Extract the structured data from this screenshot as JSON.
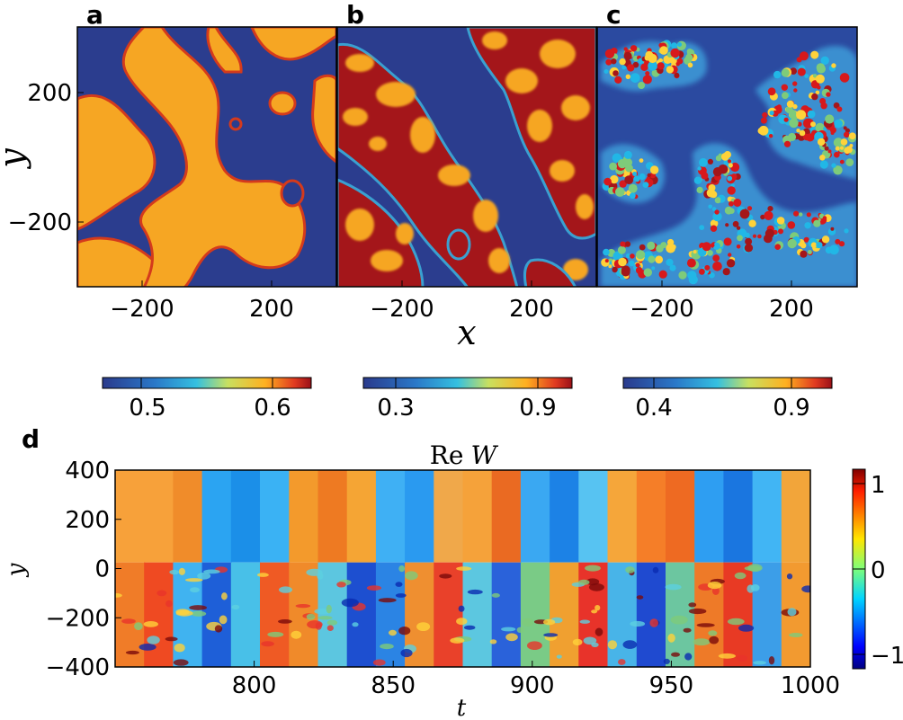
{
  "chart_data": [
    {
      "panel": "a",
      "type": "heatmap",
      "description_label": "a",
      "x_ticks": [
        -200,
        200
      ],
      "y_ticks": [
        200,
        -200
      ],
      "xlim": [
        -400,
        400
      ],
      "ylim": [
        -400,
        400
      ],
      "ylabel": "y",
      "colorbar_ticks": [
        0.5,
        0.6
      ],
      "colorbar_ticklabels": [
        "0.5",
        "0.6"
      ]
    },
    {
      "panel": "b",
      "type": "heatmap",
      "description_label": "b",
      "x_ticks": [
        -200,
        200
      ],
      "xlim": [
        -400,
        400
      ],
      "ylim": [
        -400,
        400
      ],
      "xlabel": "x",
      "colorbar_ticks": [
        0.3,
        0.9
      ],
      "colorbar_ticklabels": [
        "0.3",
        "0.9"
      ]
    },
    {
      "panel": "c",
      "type": "heatmap",
      "description_label": "c",
      "x_ticks": [
        -200,
        200
      ],
      "xlim": [
        -400,
        400
      ],
      "ylim": [
        -400,
        400
      ],
      "colorbar_ticks": [
        0.4,
        0.9
      ],
      "colorbar_ticklabels": [
        "0.4",
        "0.9"
      ]
    },
    {
      "panel": "d",
      "type": "heatmap",
      "description_label": "d",
      "title_prefix": "Re",
      "title_var": "W",
      "xlabel": "t",
      "ylabel": "y",
      "xlim": [
        750,
        1000
      ],
      "ylim": [
        -400,
        400
      ],
      "x_ticks": [
        800,
        850,
        900,
        950,
        1000
      ],
      "x_ticklabels": [
        "800",
        "850",
        "900",
        "950",
        "1000"
      ],
      "y_ticks": [
        400,
        200,
        0,
        -200,
        -400
      ],
      "y_ticklabels": [
        "400",
        "200",
        "0",
        "−200",
        "−400"
      ],
      "colorbar_ticks": [
        1,
        0,
        -1
      ],
      "colorbar_ticklabels": [
        "1",
        "0",
        "−1"
      ]
    }
  ],
  "labels": {
    "a": "a",
    "b": "b",
    "c": "c",
    "d": "d",
    "ya": "y",
    "xb": "x",
    "td": "t",
    "yd": "y",
    "title_re": "Re",
    "title_w": "W",
    "tick_m200": "−200",
    "tick_200": "200",
    "cb_a1": "0.5",
    "cb_a2": "0.6",
    "cb_b1": "0.3",
    "cb_b2": "0.9",
    "cb_c1": "0.4",
    "cb_c2": "0.9",
    "cb_d1": "1",
    "cb_d0": "0",
    "cb_dm1": "−1"
  },
  "colors": {
    "navy": "#2b3d8e",
    "orange": "#f6a623",
    "dark_red": "#a4161a",
    "red": "#d7191c",
    "cyan": "#21b7e6",
    "blue": "#1565d6",
    "green": "#7ecb7a",
    "yellow": "#ffd23a"
  }
}
